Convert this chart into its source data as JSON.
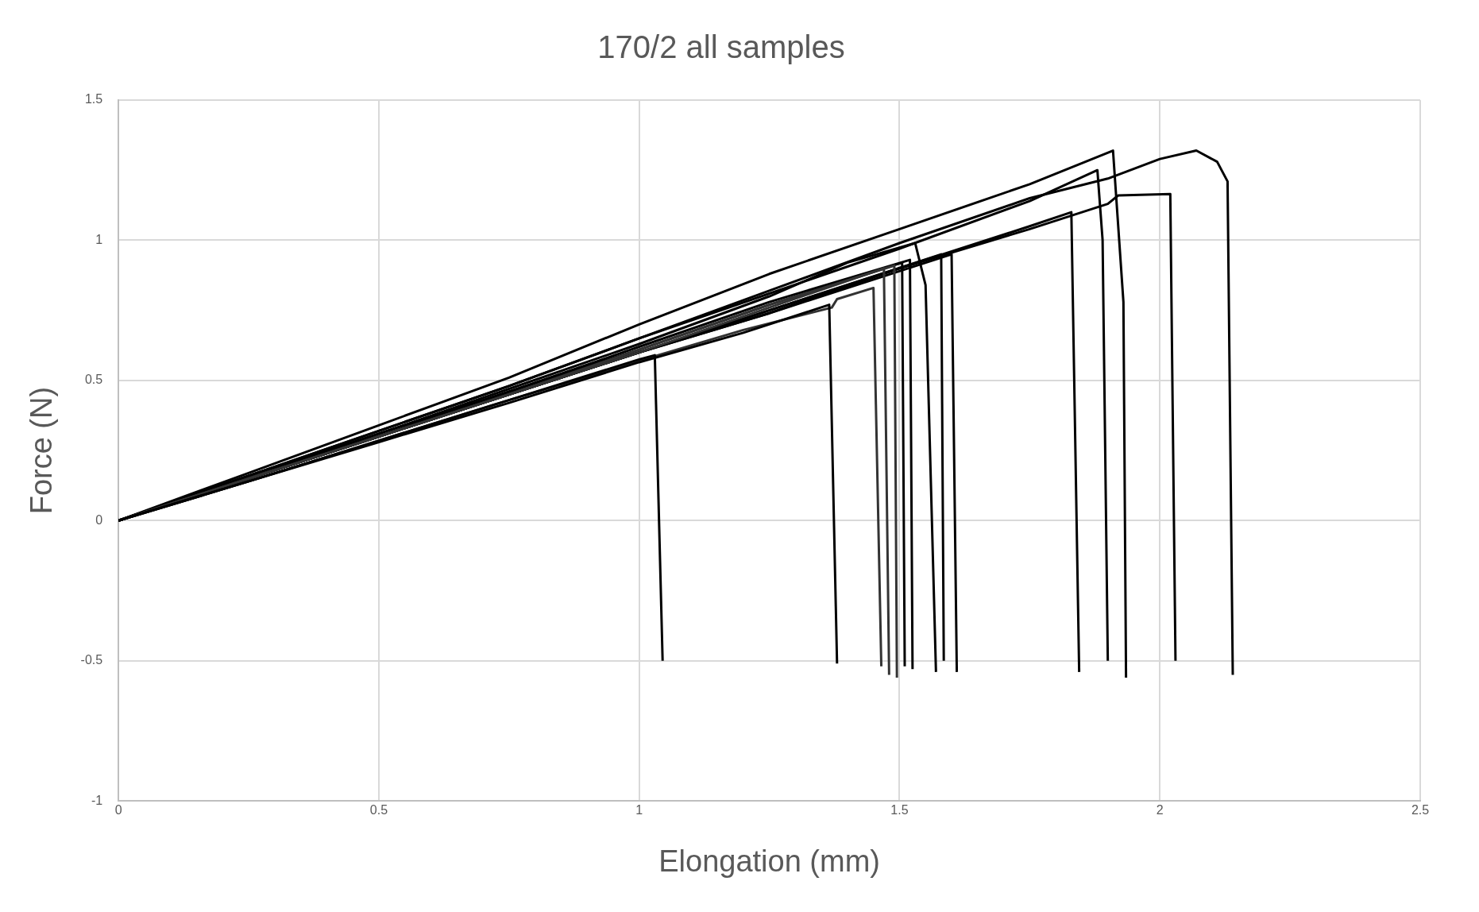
{
  "chart_data": {
    "type": "line",
    "title": "170/2 all samples",
    "xlabel": "Elongation (mm)",
    "ylabel": "Force (N)",
    "xlim": [
      0,
      2.5
    ],
    "xticks": [
      0,
      0.5,
      1,
      1.5,
      2,
      2.5
    ],
    "ylim": [
      -1,
      1.5
    ],
    "yticks": [
      -1,
      -0.5,
      0,
      0.5,
      1,
      1.5
    ],
    "grid": true,
    "legend": false,
    "marker": "none",
    "line_style": "solid",
    "series": [
      {
        "color": "#000000",
        "x": [
          0,
          0.25,
          0.5,
          0.75,
          1.0,
          1.03,
          1.045
        ],
        "values": [
          0,
          0.14,
          0.285,
          0.43,
          0.575,
          0.59,
          -0.5
        ]
      },
      {
        "color": "#000000",
        "x": [
          0,
          0.25,
          0.5,
          0.75,
          1.0,
          1.2,
          1.365,
          1.38
        ],
        "values": [
          0,
          0.14,
          0.28,
          0.42,
          0.565,
          0.67,
          0.77,
          -0.51
        ]
      },
      {
        "color": "#333333",
        "x": [
          0,
          0.25,
          0.5,
          0.75,
          1.0,
          1.2,
          1.37,
          1.38,
          1.45,
          1.465
        ],
        "values": [
          0,
          0.14,
          0.285,
          0.43,
          0.57,
          0.68,
          0.76,
          0.79,
          0.83,
          -0.52
        ]
      },
      {
        "color": "#333333",
        "x": [
          0,
          0.25,
          0.5,
          0.75,
          1.0,
          1.25,
          1.47,
          1.48
        ],
        "values": [
          0,
          0.15,
          0.3,
          0.45,
          0.6,
          0.76,
          0.9,
          -0.55
        ]
      },
      {
        "color": "#333333",
        "x": [
          0,
          0.25,
          0.5,
          0.75,
          1.0,
          1.25,
          1.49,
          1.495
        ],
        "values": [
          0,
          0.15,
          0.3,
          0.45,
          0.61,
          0.77,
          0.91,
          -0.56
        ]
      },
      {
        "color": "#000000",
        "x": [
          0,
          0.25,
          0.5,
          0.75,
          1.0,
          1.25,
          1.505,
          1.51
        ],
        "values": [
          0,
          0.15,
          0.3,
          0.46,
          0.61,
          0.77,
          0.92,
          -0.52
        ]
      },
      {
        "color": "#000000",
        "x": [
          0,
          0.25,
          0.5,
          0.75,
          1.0,
          1.25,
          1.52,
          1.525
        ],
        "values": [
          0,
          0.15,
          0.31,
          0.46,
          0.62,
          0.78,
          0.93,
          -0.53
        ]
      },
      {
        "color": "#000000",
        "x": [
          0,
          0.25,
          0.5,
          0.75,
          1.0,
          1.25,
          1.4,
          1.53,
          1.55,
          1.57
        ],
        "values": [
          0,
          0.16,
          0.31,
          0.47,
          0.63,
          0.8,
          0.92,
          0.99,
          0.84,
          -0.54
        ]
      },
      {
        "color": "#000000",
        "x": [
          0,
          0.25,
          0.5,
          0.75,
          1.0,
          1.25,
          1.58,
          1.585
        ],
        "values": [
          0,
          0.15,
          0.3,
          0.45,
          0.6,
          0.75,
          0.95,
          -0.5
        ]
      },
      {
        "color": "#000000",
        "x": [
          0,
          0.25,
          0.5,
          0.75,
          1.0,
          1.25,
          1.6,
          1.61
        ],
        "values": [
          0,
          0.15,
          0.3,
          0.45,
          0.6,
          0.74,
          0.95,
          -0.54
        ]
      },
      {
        "color": "#000000",
        "x": [
          0,
          0.25,
          0.5,
          0.75,
          1.0,
          1.25,
          1.5,
          1.75,
          1.83,
          1.845
        ],
        "values": [
          0,
          0.15,
          0.3,
          0.45,
          0.6,
          0.74,
          0.9,
          1.05,
          1.1,
          -0.54
        ]
      },
      {
        "color": "#000000",
        "x": [
          0,
          0.25,
          0.5,
          0.75,
          1.0,
          1.25,
          1.5,
          1.75,
          1.88,
          1.89,
          1.9
        ],
        "values": [
          0,
          0.16,
          0.32,
          0.48,
          0.65,
          0.81,
          0.97,
          1.14,
          1.25,
          1.0,
          -0.5
        ]
      },
      {
        "color": "#000000",
        "x": [
          0,
          0.25,
          0.5,
          0.75,
          1.0,
          1.25,
          1.5,
          1.75,
          1.91,
          1.93,
          1.935
        ],
        "values": [
          0,
          0.17,
          0.34,
          0.51,
          0.7,
          0.88,
          1.04,
          1.2,
          1.32,
          0.78,
          -0.56
        ]
      },
      {
        "color": "#000000",
        "x": [
          0,
          0.25,
          0.5,
          0.75,
          1.0,
          1.25,
          1.5,
          1.75,
          1.9,
          1.92,
          2.02,
          2.03
        ],
        "values": [
          0,
          0.15,
          0.3,
          0.45,
          0.6,
          0.75,
          0.9,
          1.04,
          1.13,
          1.16,
          1.165,
          -0.5
        ]
      },
      {
        "color": "#000000",
        "x": [
          0,
          0.25,
          0.5,
          0.75,
          1.0,
          1.25,
          1.5,
          1.75,
          1.9,
          2.0,
          2.07,
          2.11,
          2.13,
          2.14
        ],
        "values": [
          0,
          0.16,
          0.32,
          0.48,
          0.65,
          0.82,
          0.99,
          1.15,
          1.22,
          1.29,
          1.32,
          1.28,
          1.21,
          -0.55
        ]
      }
    ]
  }
}
